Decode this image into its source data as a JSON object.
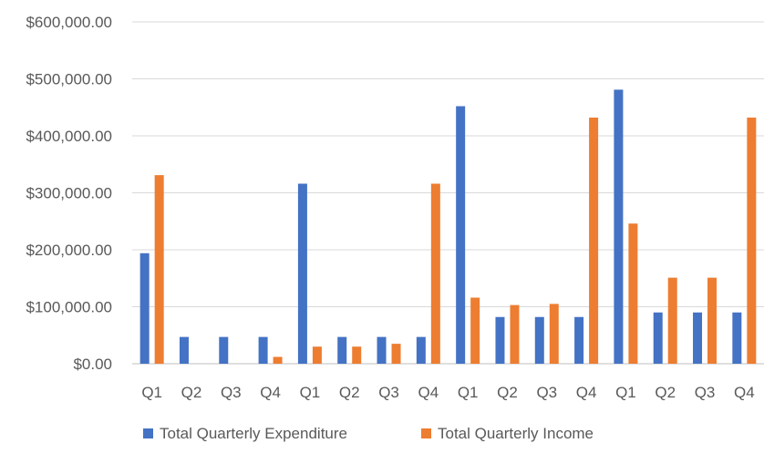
{
  "chart_data": {
    "type": "bar",
    "categories": [
      "Q1",
      "Q2",
      "Q3",
      "Q4",
      "Q1",
      "Q2",
      "Q3",
      "Q4",
      "Q1",
      "Q2",
      "Q3",
      "Q4",
      "Q1",
      "Q2",
      "Q3",
      "Q4"
    ],
    "series": [
      {
        "name": "Total Quarterly Expenditure",
        "color": "#4472C4",
        "values": [
          194000,
          47000,
          47000,
          47000,
          316000,
          47000,
          47000,
          47000,
          452000,
          82000,
          82000,
          82000,
          481000,
          90000,
          90000,
          90000
        ]
      },
      {
        "name": "Total Quarterly Income",
        "color": "#ED7D31",
        "values": [
          331000,
          0,
          0,
          12000,
          30000,
          30000,
          35000,
          316000,
          116000,
          103000,
          105000,
          432000,
          246000,
          151000,
          151000,
          432000
        ]
      }
    ],
    "y_ticks": [
      "$0.00",
      "$100,000.00",
      "$200,000.00",
      "$300,000.00",
      "$400,000.00",
      "$500,000.00",
      "$600,000.00"
    ],
    "ylim": [
      0,
      600000
    ],
    "grid": true,
    "legend_position": "bottom"
  }
}
